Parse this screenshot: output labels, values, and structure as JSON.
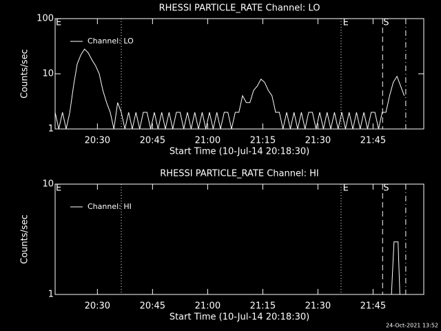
{
  "chart_data": [
    {
      "type": "line",
      "title": "RHESSI PARTICLE_RATE Channel: LO",
      "xlabel": "Start Time (10-Jul-14 20:18:30)",
      "ylabel": "Counts/sec",
      "log_y": true,
      "xlim": [
        0,
        100.3
      ],
      "ylim": [
        1,
        100
      ],
      "xticks": [
        {
          "value": 11.5,
          "label": "20:30"
        },
        {
          "value": 26.5,
          "label": "20:45"
        },
        {
          "value": 41.5,
          "label": "21:00"
        },
        {
          "value": 56.5,
          "label": "21:15"
        },
        {
          "value": 71.5,
          "label": "21:30"
        },
        {
          "value": 86.5,
          "label": "21:45"
        }
      ],
      "yticks": [
        1,
        10,
        100
      ],
      "vlines": [
        {
          "x": 18,
          "style": "dotted"
        },
        {
          "x": 77.8,
          "style": "dotted"
        },
        {
          "x": 89.1,
          "style": "dashed"
        },
        {
          "x": 95.4,
          "style": "dashdot"
        }
      ],
      "annotations": [
        {
          "text": "E",
          "x": 0
        },
        {
          "text": "E",
          "x": 78.1
        },
        {
          "text": "S",
          "x": 89.1
        }
      ],
      "series": [
        {
          "name": "Channel: LO",
          "color": "#ffffff",
          "x": [
            0,
            1,
            2,
            3,
            4,
            5,
            6,
            7,
            8,
            9,
            10,
            11,
            12,
            13,
            14,
            15,
            16,
            17,
            18,
            19,
            20,
            21,
            22,
            23,
            24,
            25,
            26,
            27,
            28,
            29,
            30,
            31,
            32,
            33,
            34,
            35,
            36,
            37,
            38,
            39,
            40,
            41,
            42,
            43,
            44,
            45,
            46,
            47,
            48,
            49,
            50,
            51,
            52,
            53,
            54,
            55,
            56,
            57,
            58,
            59,
            60,
            61,
            62,
            63,
            64,
            65,
            66,
            67,
            68,
            69,
            70,
            71,
            72,
            73,
            74,
            75,
            76,
            77,
            78,
            79,
            80,
            81,
            82,
            83,
            84,
            85,
            86,
            87,
            88,
            89,
            90,
            91,
            92,
            93,
            94,
            95
          ],
          "values": [
            2,
            1,
            2,
            1,
            2,
            6,
            15,
            22,
            28,
            24,
            18,
            14,
            10,
            5,
            3,
            2,
            1,
            3,
            2,
            1,
            2,
            1,
            2,
            1,
            2,
            2,
            1,
            2,
            1,
            2,
            1,
            2,
            1,
            2,
            2,
            1,
            2,
            1,
            2,
            1,
            2,
            1,
            2,
            1,
            2,
            1,
            2,
            2,
            1,
            2,
            2,
            4,
            3,
            3,
            5,
            6,
            8,
            7,
            5,
            4,
            2,
            2,
            1,
            2,
            1,
            2,
            1,
            2,
            1,
            2,
            2,
            1,
            2,
            1,
            2,
            1,
            2,
            1,
            2,
            1,
            2,
            1,
            2,
            1,
            2,
            1,
            2,
            2,
            1,
            2,
            2,
            4,
            7,
            9,
            6,
            4
          ]
        }
      ]
    },
    {
      "type": "line",
      "title": "RHESSI PARTICLE_RATE Channel: HI",
      "xlabel": "Start Time (10-Jul-14 20:18:30)",
      "ylabel": "Counts/sec",
      "log_y": true,
      "xlim": [
        0,
        100.3
      ],
      "ylim": [
        1,
        10
      ],
      "xticks": [
        {
          "value": 11.5,
          "label": "20:30"
        },
        {
          "value": 26.5,
          "label": "20:45"
        },
        {
          "value": 41.5,
          "label": "21:00"
        },
        {
          "value": 56.5,
          "label": "21:15"
        },
        {
          "value": 71.5,
          "label": "21:30"
        },
        {
          "value": 86.5,
          "label": "21:45"
        }
      ],
      "yticks": [
        1,
        10
      ],
      "vlines": [
        {
          "x": 18,
          "style": "dotted"
        },
        {
          "x": 77.8,
          "style": "dotted"
        },
        {
          "x": 89.1,
          "style": "dashed"
        },
        {
          "x": 95.4,
          "style": "dashdot"
        }
      ],
      "annotations": [
        {
          "text": "E",
          "x": 0
        },
        {
          "text": "E",
          "x": 78.1
        },
        {
          "text": "S",
          "x": 89.1
        }
      ],
      "series": [
        {
          "name": "Channel: HI",
          "color": "#ffffff",
          "x": [
            91.5,
            92.2,
            92.6,
            93.3,
            93.8
          ],
          "values": [
            1,
            3,
            3,
            3,
            1
          ]
        }
      ]
    }
  ],
  "footer": "24-Oct-2021 13:52"
}
